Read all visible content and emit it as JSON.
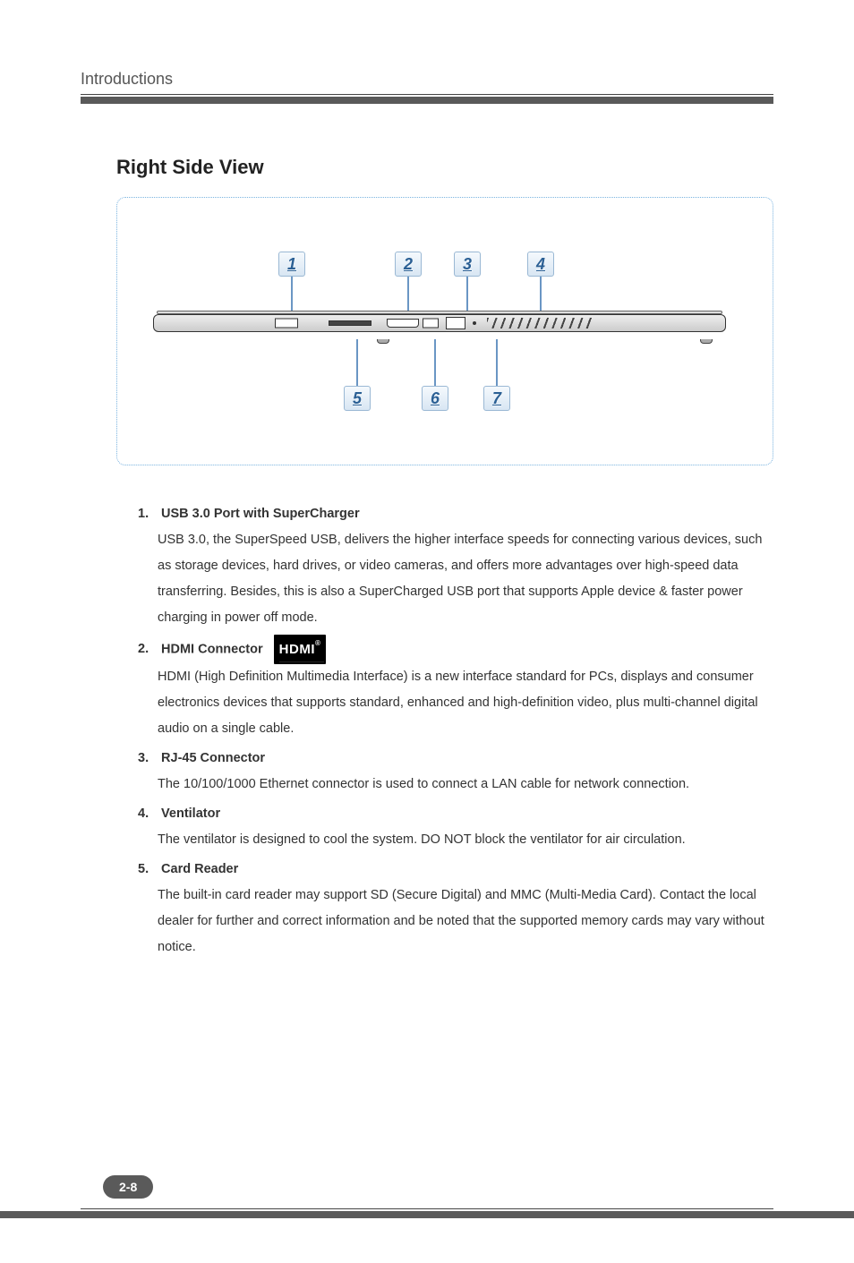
{
  "header": {
    "title": "Introductions"
  },
  "section": {
    "title": "Right Side View"
  },
  "figure": {
    "callouts_top": [
      "1",
      "2",
      "3",
      "4"
    ],
    "callouts_bottom": [
      "5",
      "6",
      "7"
    ],
    "callout_bg_gradient": [
      "#f5f9fd",
      "#d8e6f3"
    ],
    "callout_border": "#9ab8d4",
    "callout_text_color": "#2a5f94",
    "leader_color": "#6a96c4",
    "dotted_border_color": "#7ab3e0"
  },
  "items": [
    {
      "num": "1.",
      "title": "USB 3.0 Port with SuperCharger",
      "body": "USB 3.0, the SuperSpeed USB, delivers the higher interface speeds for connecting various devices, such as storage devices, hard drives, or video cameras, and offers more advantages over high-speed data transferring. Besides, this is also a SuperCharged USB port that supports Apple device & faster power charging in power off mode."
    },
    {
      "num": "2.",
      "title": "HDMI Connector",
      "logo": "HDMI",
      "body": "HDMI (High Definition Multimedia Interface) is a new interface standard for PCs, displays and consumer electronics devices that supports standard, enhanced and high-definition video, plus multi-channel digital audio on a single cable."
    },
    {
      "num": "3.",
      "title": "RJ-45 Connector",
      "body": "The 10/100/1000 Ethernet connector is used to connect a LAN cable for network connection."
    },
    {
      "num": "4.",
      "title": "Ventilator",
      "body": "The ventilator is designed to cool the system. DO NOT block the ventilator for air circulation."
    },
    {
      "num": "5.",
      "title": "Card Reader",
      "body": "The built-in card reader may support SD (Secure Digital) and MMC (Multi-Media Card). Contact the local dealer for further and correct information and be noted that the supported memory cards may vary without notice."
    }
  ],
  "footer": {
    "page_number": "2-8"
  },
  "colors": {
    "header_bar": "#5a5a5a",
    "text": "#333333",
    "background": "#ffffff"
  }
}
